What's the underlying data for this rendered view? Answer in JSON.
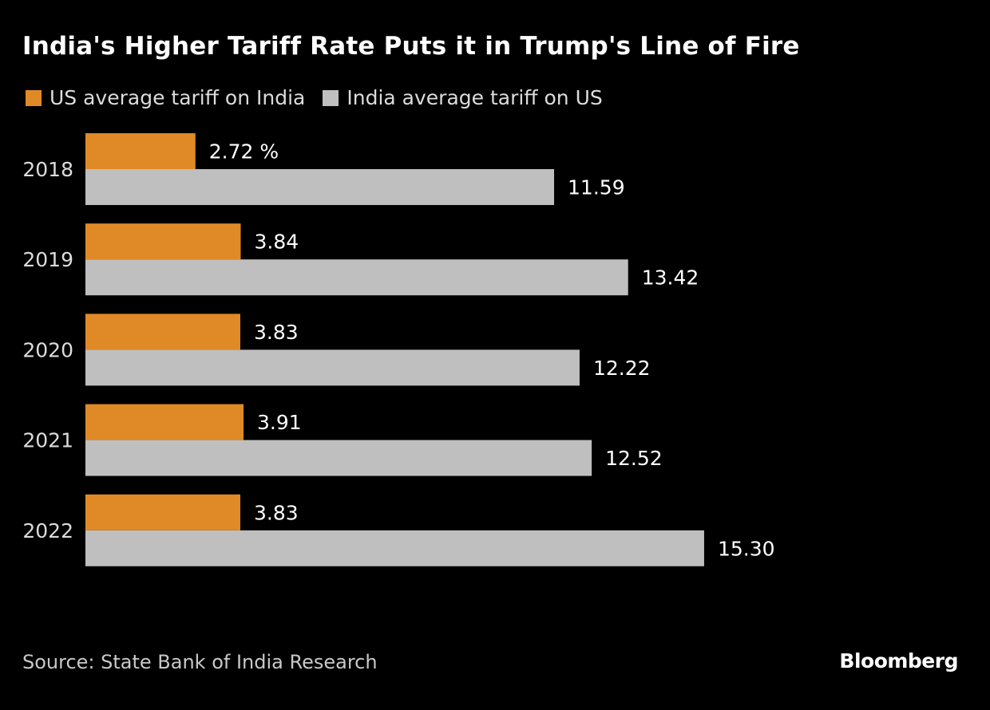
{
  "chart_data": {
    "type": "bar",
    "orientation": "horizontal",
    "title": "India's Higher Tariff Rate Puts it in Trump's Line of Fire",
    "categories": [
      "2018",
      "2019",
      "2020",
      "2021",
      "2022"
    ],
    "series": [
      {
        "name": "US average tariff on India",
        "color": "#e08a27",
        "values": [
          2.72,
          3.84,
          3.83,
          3.91,
          3.83
        ],
        "labels": [
          "2.72 %",
          "3.84",
          "3.83",
          "3.91",
          "3.83"
        ]
      },
      {
        "name": "India average tariff on US",
        "color": "#bfbfbf",
        "values": [
          11.59,
          13.42,
          12.22,
          12.52,
          15.3
        ],
        "labels": [
          "11.59",
          "13.42",
          "12.22",
          "12.52",
          "15.30"
        ]
      }
    ],
    "legend_position": "top-left",
    "grid": false,
    "xlim": [
      0,
      20
    ]
  },
  "footer": {
    "source": "Source: State Bank of India Research",
    "logo": "Bloomberg"
  }
}
